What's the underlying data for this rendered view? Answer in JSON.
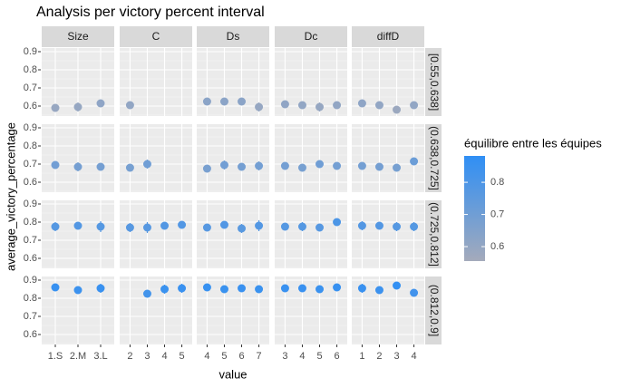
{
  "chart_data": {
    "type": "facet_pointrange",
    "title": "Analysis per victory percent interval",
    "x_label": "value",
    "y_label": "average_victory_percentage",
    "ylim": [
      0.545,
      0.92
    ],
    "yticks": [
      0.6,
      0.7,
      0.8,
      0.9
    ],
    "grid": true,
    "facets": [
      {
        "name": "Size",
        "categories": [
          "1.S",
          "2.M",
          "3.L"
        ]
      },
      {
        "name": "C",
        "categories": [
          "2",
          "3",
          "4",
          "5"
        ]
      },
      {
        "name": "Ds",
        "categories": [
          "4",
          "5",
          "6",
          "7"
        ]
      },
      {
        "name": "Dc",
        "categories": [
          "3",
          "4",
          "5",
          "6"
        ]
      },
      {
        "name": "diffD",
        "categories": [
          "1",
          "2",
          "3",
          "4"
        ]
      }
    ],
    "rows": [
      {
        "label": "[0.55,0.638]",
        "series": [
          {
            "values": [
              0.59,
              0.595,
              0.615
            ],
            "errors": [
              0.012,
              0.025,
              0.012
            ]
          },
          {
            "values": [
              0.605,
              null,
              null,
              null
            ],
            "errors": [
              0.02,
              null,
              null,
              null
            ]
          },
          {
            "values": [
              0.625,
              0.625,
              0.625,
              0.595
            ],
            "errors": [
              0.01,
              0.01,
              0.012,
              0.025
            ]
          },
          {
            "values": [
              0.61,
              0.605,
              0.595,
              0.605
            ],
            "errors": [
              0.015,
              0.015,
              0.025,
              0.012
            ]
          },
          {
            "values": [
              0.615,
              0.605,
              0.58,
              0.605
            ],
            "errors": [
              0.012,
              0.02,
              0.01,
              0.015
            ]
          }
        ]
      },
      {
        "label": "(0.638,0.725]",
        "series": [
          {
            "values": [
              0.695,
              0.685,
              0.685
            ],
            "errors": [
              0.02,
              0.025,
              0.02
            ]
          },
          {
            "values": [
              0.68,
              0.7,
              null,
              null
            ],
            "errors": [
              0.02,
              0.025,
              null,
              null
            ]
          },
          {
            "values": [
              0.675,
              0.695,
              0.685,
              0.69
            ],
            "errors": [
              0.01,
              0.025,
              0.02,
              0.025
            ]
          },
          {
            "values": [
              0.69,
              0.68,
              0.7,
              0.69
            ],
            "errors": [
              0.02,
              0.02,
              0.02,
              0.015
            ]
          },
          {
            "values": [
              0.69,
              0.685,
              0.68,
              0.715
            ],
            "errors": [
              0.02,
              0.02,
              0.02,
              0.01
            ]
          }
        ]
      },
      {
        "label": "(0.725,0.812]",
        "series": [
          {
            "values": [
              0.775,
              0.78,
              0.775
            ],
            "errors": [
              0.025,
              0.02,
              0.03
            ]
          },
          {
            "values": [
              0.77,
              0.77,
              0.78,
              0.785
            ],
            "errors": [
              0.025,
              0.03,
              0.02,
              0.02
            ]
          },
          {
            "values": [
              0.77,
              0.785,
              0.765,
              0.78
            ],
            "errors": [
              0.01,
              0.02,
              0.025,
              0.03
            ]
          },
          {
            "values": [
              0.775,
              0.775,
              0.77,
              0.8
            ],
            "errors": [
              0.02,
              0.025,
              0.02,
              0.01
            ]
          },
          {
            "values": [
              0.78,
              0.78,
              0.775,
              0.775
            ],
            "errors": [
              0.025,
              0.02,
              0.025,
              0.025
            ]
          }
        ]
      },
      {
        "label": "(0.812,0.9]",
        "series": [
          {
            "values": [
              0.86,
              0.845,
              0.855
            ],
            "errors": [
              0.02,
              0.015,
              0.025
            ]
          },
          {
            "values": [
              null,
              0.825,
              0.85,
              0.855
            ],
            "errors": [
              null,
              0.005,
              0.025,
              0.025
            ]
          },
          {
            "values": [
              0.86,
              0.85,
              0.855,
              0.85
            ],
            "errors": [
              0.02,
              0.01,
              0.02,
              0.02
            ]
          },
          {
            "values": [
              0.855,
              0.855,
              0.85,
              0.86
            ],
            "errors": [
              0.02,
              0.02,
              0.015,
              0.02
            ]
          },
          {
            "values": [
              0.855,
              0.845,
              0.87,
              0.83
            ],
            "errors": [
              0.025,
              0.01,
              0.015,
              0.005
            ]
          }
        ]
      }
    ],
    "legend": {
      "title": "équilibre entre les équipes",
      "lim": [
        0.555,
        0.882
      ],
      "ticks": [
        0.6,
        0.7,
        0.8
      ],
      "low_color": "#a4aabb",
      "high_color": "#2f8ff5"
    }
  }
}
